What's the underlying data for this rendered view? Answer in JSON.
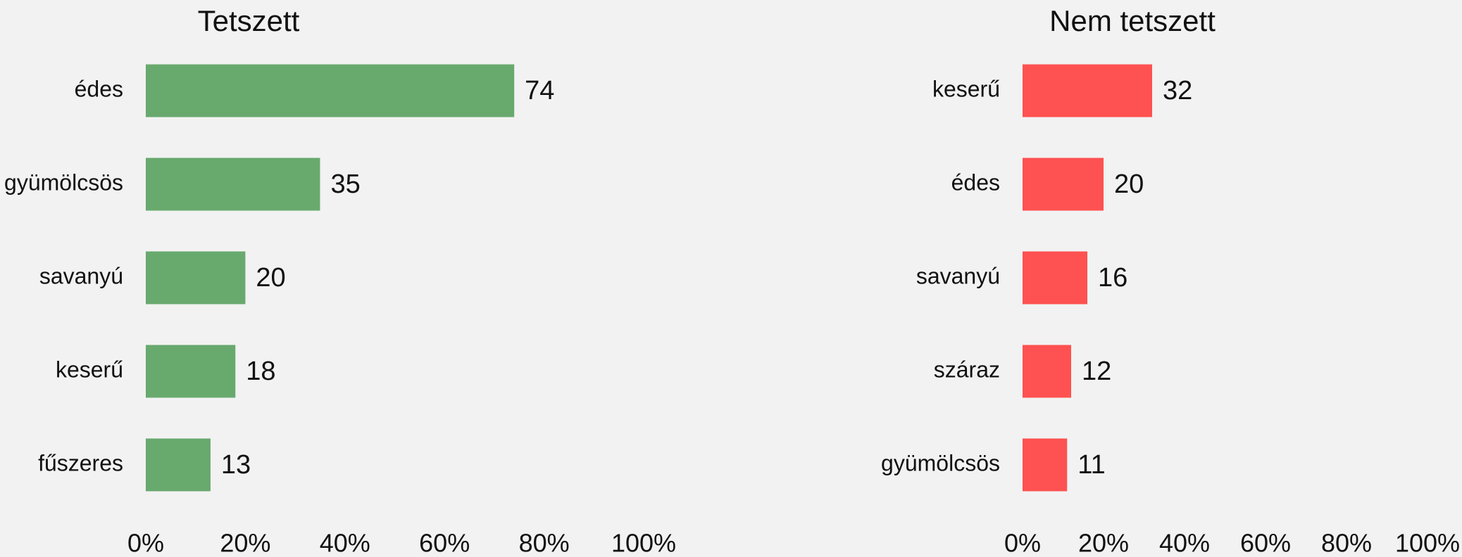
{
  "chart_data": [
    {
      "type": "barh",
      "title": "Tetszett",
      "categories": [
        "édes",
        "gyümölcsös",
        "savanyú",
        "keserű",
        "fűszeres"
      ],
      "values": [
        74,
        35,
        20,
        18,
        13
      ],
      "color": "#68a96e",
      "xlim": [
        0,
        100
      ],
      "xticks": [
        {
          "value": 0,
          "label": "0%"
        },
        {
          "value": 20,
          "label": "20%"
        },
        {
          "value": 40,
          "label": "40%"
        },
        {
          "value": 60,
          "label": "60%"
        },
        {
          "value": 80,
          "label": "80%"
        },
        {
          "value": 100,
          "label": "100%"
        }
      ]
    },
    {
      "type": "barh",
      "title": "Nem tetszett",
      "categories": [
        "keserű",
        "édes",
        "savanyú",
        "száraz",
        "gyümölcsös"
      ],
      "values": [
        32,
        20,
        16,
        12,
        11
      ],
      "color": "#fe5151",
      "xlim": [
        0,
        100
      ],
      "xticks": [
        {
          "value": 0,
          "label": "0%"
        },
        {
          "value": 20,
          "label": "20%"
        },
        {
          "value": 40,
          "label": "40%"
        },
        {
          "value": 60,
          "label": "60%"
        },
        {
          "value": 80,
          "label": "80%"
        },
        {
          "value": 100,
          "label": "100%"
        }
      ]
    }
  ]
}
